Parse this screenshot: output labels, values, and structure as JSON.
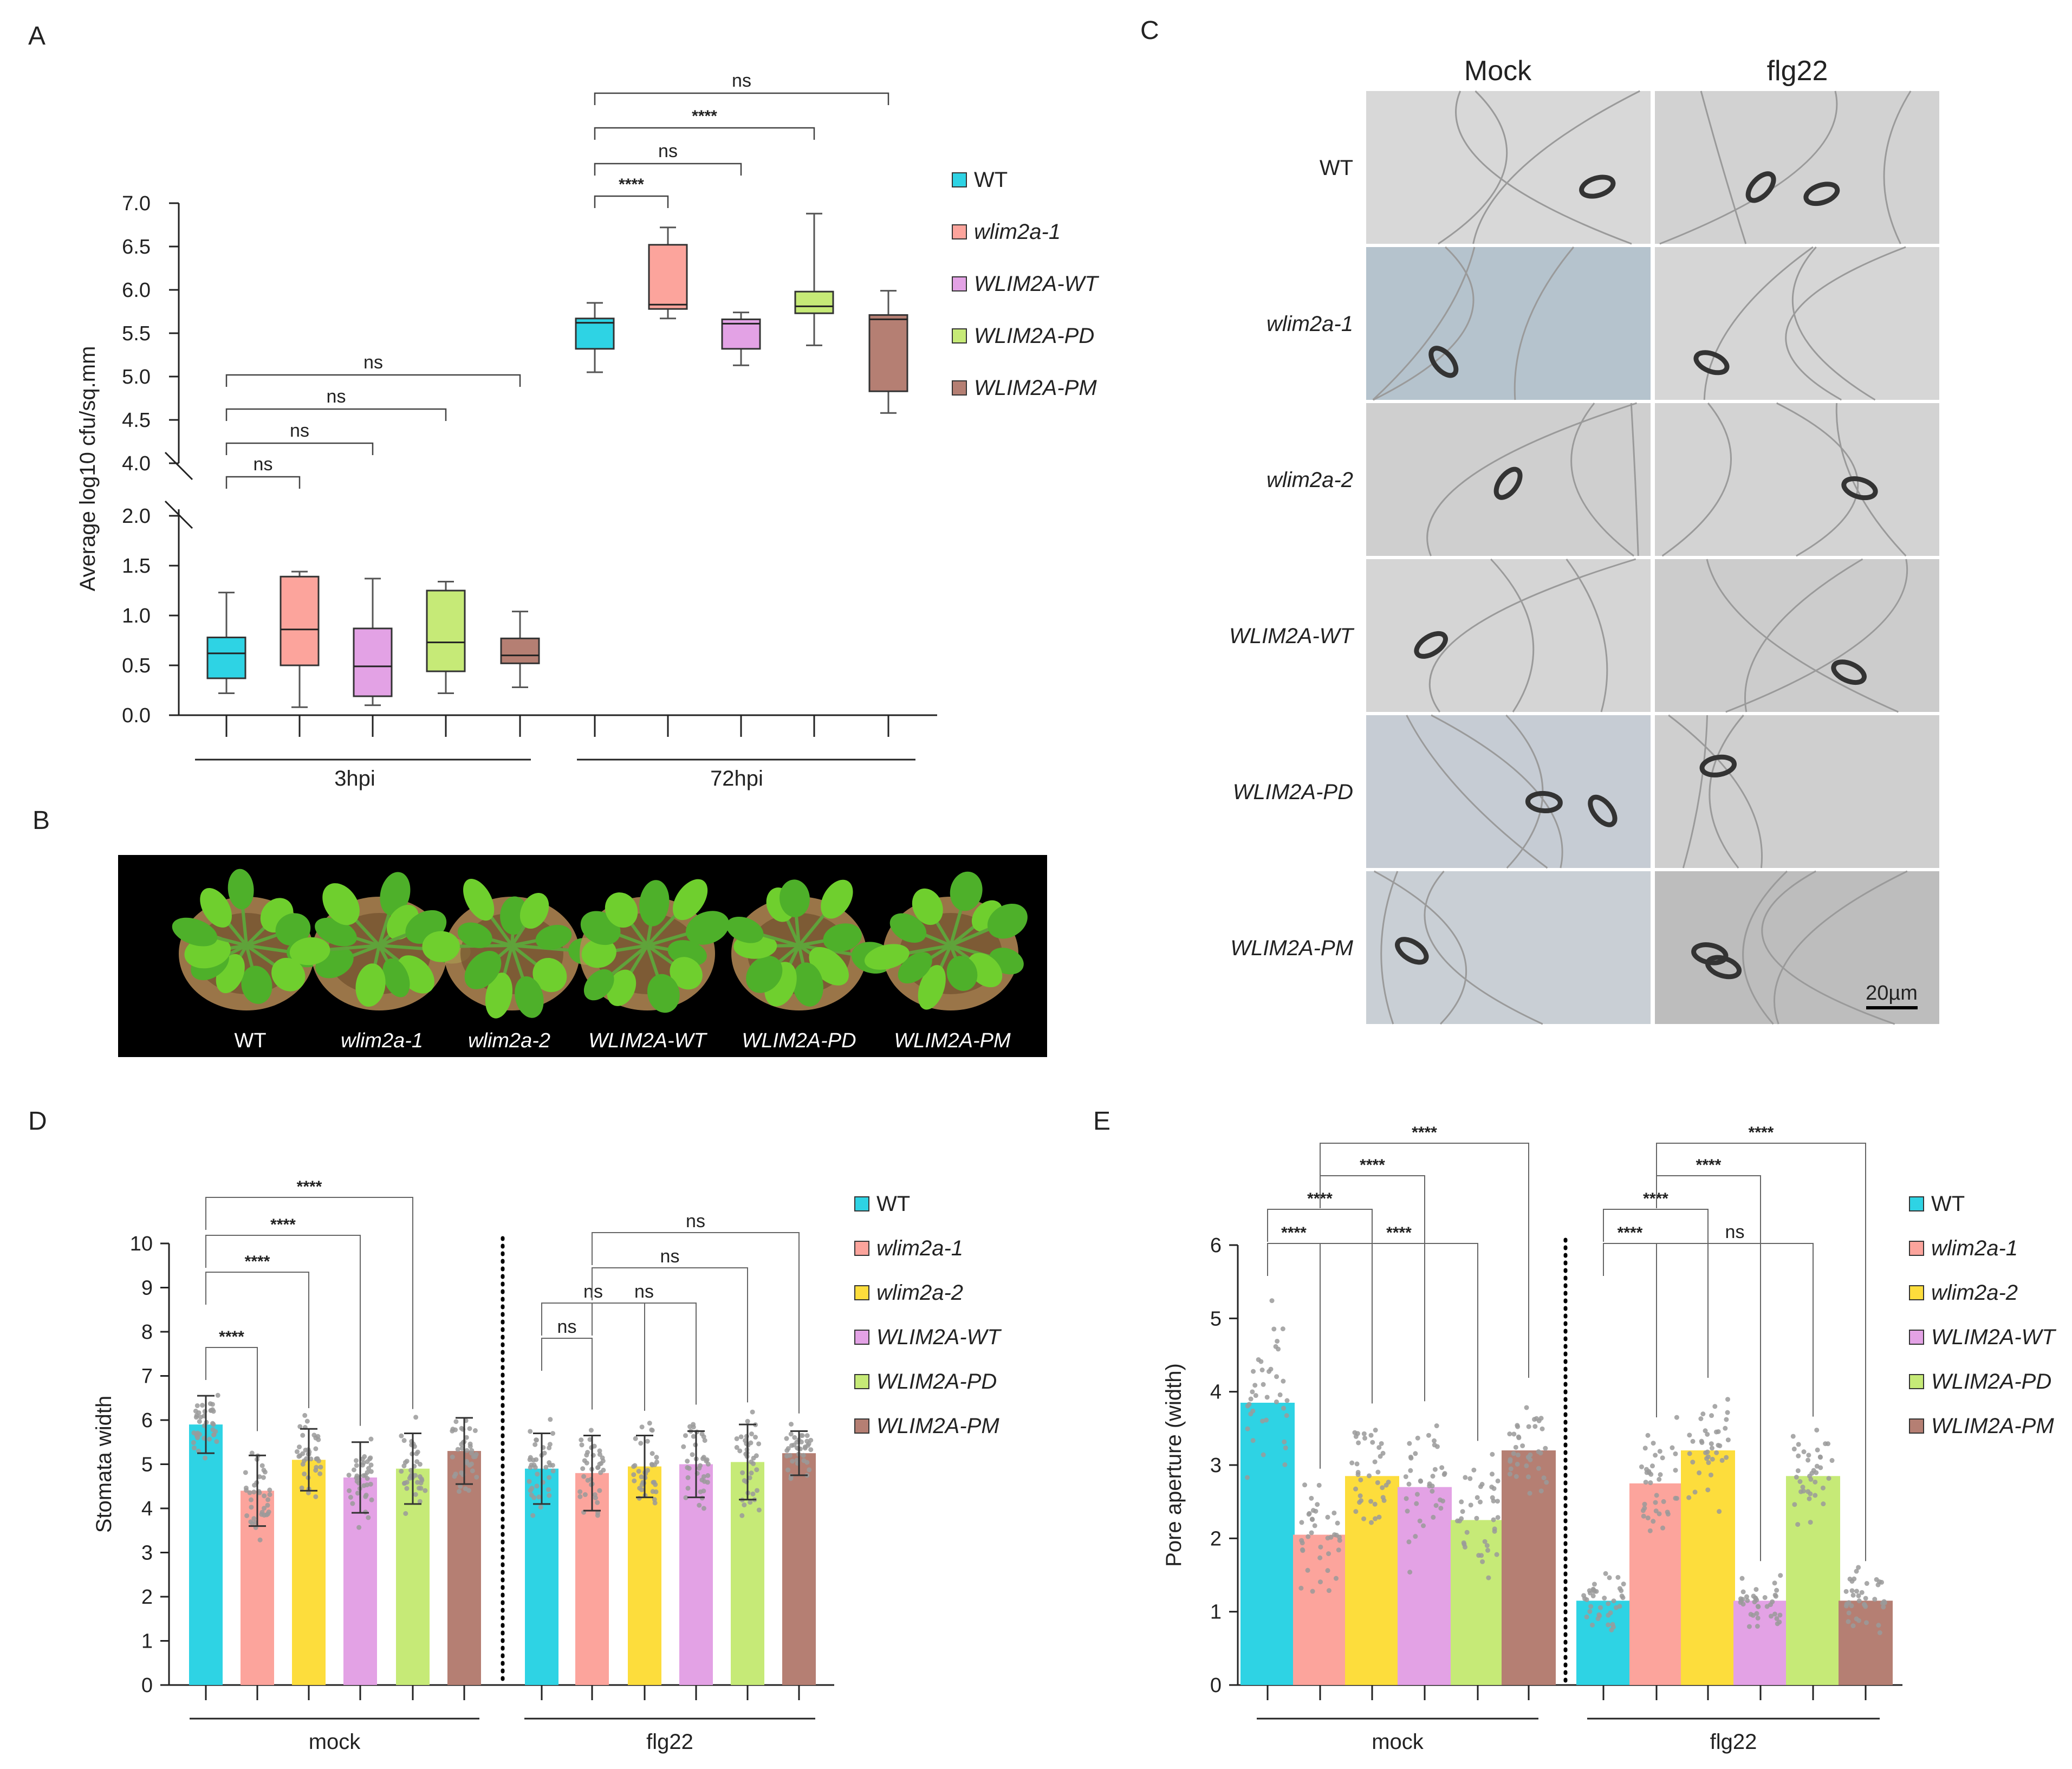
{
  "panel_labels": [
    "A",
    "B",
    "C",
    "D",
    "E"
  ],
  "colors": {
    "WT": "#2ed3e4",
    "wlim2a-1": "#fca49c",
    "wlim2a-2": "#fddd3c",
    "WLIM2A-WT": "#e3a2e5",
    "WLIM2A-PD": "#c6ea77",
    "WLIM2A-PM": "#b57f73"
  },
  "chart_data": [
    {
      "panel": "A",
      "type": "box",
      "ylabel": "Average log10 cfu/sq.mm",
      "y_ticks_lower": [
        "0.0",
        "0.5",
        "1.0",
        "1.5",
        "2.0"
      ],
      "y_ticks_upper": [
        "4.0",
        "4.5",
        "5.0",
        "5.5",
        "6.0",
        "6.5",
        "7.0"
      ],
      "axis_break": [
        2.0,
        4.0
      ],
      "groups": [
        "3hpi",
        "72hpi"
      ],
      "legend": [
        "WT",
        "wlim2a-1",
        "WLIM2A-WT",
        "WLIM2A-PD",
        "WLIM2A-PM"
      ],
      "series_keys": [
        "WT",
        "wlim2a-1",
        "WLIM2A-WT",
        "WLIM2A-PD",
        "WLIM2A-PM"
      ],
      "boxes": [
        [
          {
            "min": 0.22,
            "q1": 0.37,
            "median": 0.62,
            "q3": 0.78,
            "max": 1.23
          },
          {
            "min": 0.08,
            "q1": 0.5,
            "median": 0.86,
            "q3": 1.39,
            "max": 1.44
          },
          {
            "min": 0.1,
            "q1": 0.19,
            "median": 0.49,
            "q3": 0.87,
            "max": 1.37
          },
          {
            "min": 0.22,
            "q1": 0.44,
            "median": 0.73,
            "q3": 1.25,
            "max": 1.34
          },
          {
            "min": 0.28,
            "q1": 0.52,
            "median": 0.6,
            "q3": 0.77,
            "max": 1.04
          }
        ],
        [
          {
            "min": 5.05,
            "q1": 5.32,
            "median": 5.62,
            "q3": 5.67,
            "max": 5.85
          },
          {
            "min": 5.67,
            "q1": 5.78,
            "median": 5.83,
            "q3": 6.52,
            "max": 6.72
          },
          {
            "min": 5.13,
            "q1": 5.32,
            "median": 5.61,
            "q3": 5.66,
            "max": 5.74
          },
          {
            "min": 5.36,
            "q1": 5.73,
            "median": 5.81,
            "q3": 5.98,
            "max": 6.88
          },
          {
            "min": 4.58,
            "q1": 4.83,
            "median": 5.66,
            "q3": 5.71,
            "max": 5.99
          }
        ]
      ],
      "comparisons": [
        {
          "group": 0,
          "from": 0,
          "to": 1,
          "label": "ns"
        },
        {
          "group": 0,
          "from": 0,
          "to": 2,
          "label": "ns"
        },
        {
          "group": 0,
          "from": 0,
          "to": 3,
          "label": "ns"
        },
        {
          "group": 0,
          "from": 0,
          "to": 4,
          "label": "ns"
        },
        {
          "group": 1,
          "from": 0,
          "to": 1,
          "label": "****"
        },
        {
          "group": 1,
          "from": 0,
          "to": 2,
          "label": "ns"
        },
        {
          "group": 1,
          "from": 0,
          "to": 3,
          "label": "****"
        },
        {
          "group": 1,
          "from": 0,
          "to": 4,
          "label": "ns"
        }
      ]
    },
    {
      "panel": "D",
      "type": "bar",
      "ylabel": "Stomata width",
      "ylim": [
        0,
        10
      ],
      "y_ticks": [
        "0",
        "1",
        "2",
        "3",
        "4",
        "5",
        "6",
        "7",
        "8",
        "9",
        "10"
      ],
      "groups": [
        "mock",
        "flg22"
      ],
      "legend": [
        "WT",
        "wlim2a-1",
        "wlim2a-2",
        "WLIM2A-WT",
        "WLIM2A-PD",
        "WLIM2A-PM"
      ],
      "series_keys": [
        "WT",
        "wlim2a-1",
        "wlim2a-2",
        "WLIM2A-WT",
        "WLIM2A-PD",
        "WLIM2A-PM"
      ],
      "values": [
        [
          5.9,
          4.4,
          5.1,
          4.7,
          4.9,
          5.3
        ],
        [
          4.9,
          4.8,
          4.95,
          5.0,
          5.05,
          5.25
        ]
      ],
      "errors": [
        [
          0.65,
          0.8,
          0.7,
          0.8,
          0.8,
          0.75
        ],
        [
          0.8,
          0.85,
          0.7,
          0.75,
          0.85,
          0.5
        ]
      ],
      "point_spread": [
        [
          0.9,
          1.5,
          1.3,
          1.3,
          1.5,
          1.3
        ],
        [
          1.4,
          1.6,
          1.4,
          1.5,
          1.5,
          1.0
        ]
      ],
      "comparisons": [
        {
          "group": 0,
          "from": 0,
          "to": 1,
          "label": "****"
        },
        {
          "group": 0,
          "from": 0,
          "to": 2,
          "label": "****"
        },
        {
          "group": 0,
          "from": 0,
          "to": 3,
          "label": "****"
        },
        {
          "group": 0,
          "from": 0,
          "to": 4,
          "label": "****"
        },
        {
          "group": 1,
          "from": 0,
          "to": 1,
          "label": "ns"
        },
        {
          "group": 1,
          "from": 0,
          "to": 2,
          "label": "ns"
        },
        {
          "group": 1,
          "from": 1,
          "to": 3,
          "label": "ns"
        },
        {
          "group": 1,
          "from": 1,
          "to": 4,
          "label": "ns"
        },
        {
          "group": 1,
          "from": 1,
          "to": 5,
          "label": "ns"
        }
      ]
    },
    {
      "panel": "E",
      "type": "bar",
      "ylabel": "Pore aperture (width)",
      "ylim": [
        0,
        6
      ],
      "y_ticks": [
        "0",
        "1",
        "2",
        "3",
        "4",
        "5",
        "6"
      ],
      "groups": [
        "mock",
        "flg22"
      ],
      "legend": [
        "WT",
        "wlim2a-1",
        "wlim2a-2",
        "WLIM2A-WT",
        "WLIM2A-PD",
        "WLIM2A-PM"
      ],
      "series_keys": [
        "WT",
        "wlim2a-1",
        "wlim2a-2",
        "WLIM2A-WT",
        "WLIM2A-PD",
        "WLIM2A-PM"
      ],
      "values": [
        [
          3.85,
          2.05,
          2.85,
          2.7,
          2.25,
          3.2
        ],
        [
          1.15,
          2.75,
          3.2,
          1.15,
          2.85,
          1.15
        ]
      ],
      "point_spread": [
        [
          1.5,
          1.0,
          1.1,
          1.3,
          1.2,
          1.1
        ],
        [
          0.6,
          1.0,
          1.1,
          0.6,
          0.9,
          0.6
        ]
      ],
      "comparisons": [
        {
          "group": 0,
          "from": 0,
          "to": 1,
          "label": "****"
        },
        {
          "group": 0,
          "from": 0,
          "to": 2,
          "label": "****"
        },
        {
          "group": 0,
          "from": 1,
          "to": 3,
          "label": "****"
        },
        {
          "group": 0,
          "from": 1,
          "to": 5,
          "label": "****"
        },
        {
          "group": 0,
          "from": 1,
          "to": 4,
          "label": "****"
        },
        {
          "group": 1,
          "from": 0,
          "to": 1,
          "label": "****"
        },
        {
          "group": 1,
          "from": 0,
          "to": 2,
          "label": "****"
        },
        {
          "group": 1,
          "from": 1,
          "to": 4,
          "label": "ns"
        },
        {
          "group": 1,
          "from": 1,
          "to": 3,
          "label": "****"
        },
        {
          "group": 1,
          "from": 1,
          "to": 5,
          "label": "****"
        }
      ]
    }
  ],
  "panel_B": {
    "plant_labels": [
      "WT",
      "wlim2a-1",
      "wlim2a-2",
      "WLIM2A-WT",
      "WLIM2A-PD",
      "WLIM2A-PM"
    ]
  },
  "panel_C": {
    "columns": [
      "Mock",
      "flg22"
    ],
    "rows": [
      "WT",
      "wlim2a-1",
      "wlim2a-2",
      "WLIM2A-WT",
      "WLIM2A-PD",
      "WLIM2A-PM"
    ],
    "scale_bar": "20µm"
  }
}
